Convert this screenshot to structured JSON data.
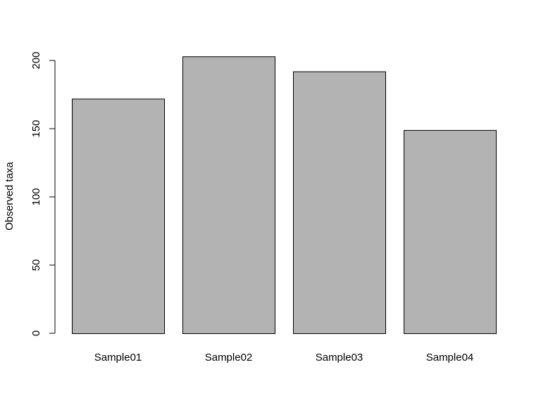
{
  "chart_data": {
    "type": "bar",
    "title": "",
    "xlabel": "",
    "ylabel": "Observed taxa",
    "categories": [
      "Sample01",
      "Sample02",
      "Sample03",
      "Sample04"
    ],
    "values": [
      172,
      203,
      192,
      149
    ],
    "ylim": [
      0,
      200
    ],
    "yticks": [
      "0",
      "50",
      "100",
      "150",
      "200"
    ],
    "grid": false,
    "legend": "none",
    "bar_fill_color": "#b3b3b3",
    "bar_border_color": "#000000"
  }
}
